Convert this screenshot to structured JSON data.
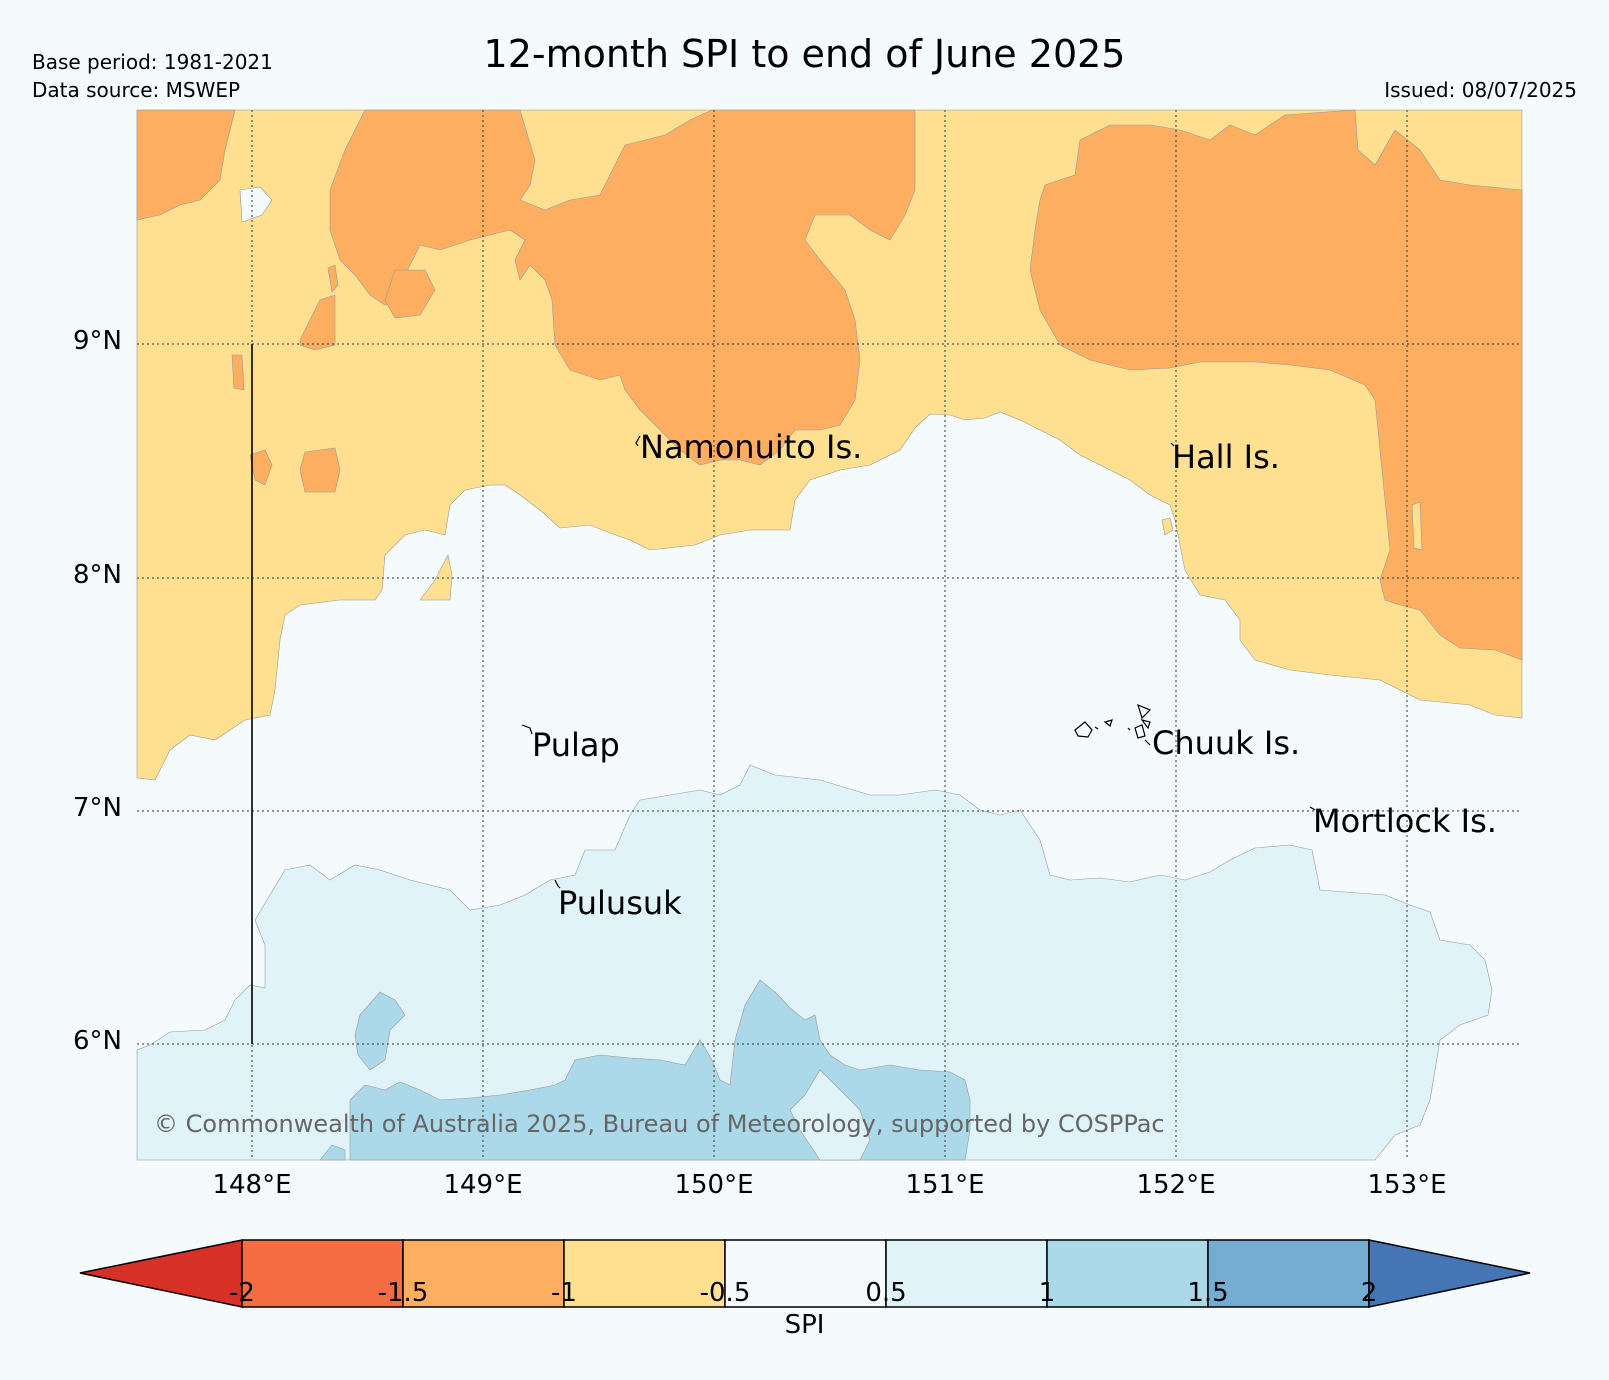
{
  "header": {
    "title": "12-month SPI to end of June 2025",
    "base_period": "Base period: 1981-2021",
    "data_source": "Data source: MSWEP",
    "issued": "Issued: 08/07/2025"
  },
  "map": {
    "lat_labels": [
      "9°N",
      "8°N",
      "7°N",
      "6°N"
    ],
    "lon_labels": [
      "148°E",
      "149°E",
      "150°E",
      "151°E",
      "152°E",
      "153°E"
    ],
    "place_labels": [
      "Namonuito Is.",
      "Hall Is.",
      "Pulap",
      "Chuuk Is.",
      "Mortlock Is.",
      "Pulusuk"
    ],
    "copyright": "© Commonwealth of Australia 2025, Bureau of Meteorology, supported by COSPPac",
    "colors": {
      "below_-2": "#d73027",
      "-2_to_-1.5": "#f46d43",
      "-1.5_to_-1": "#fdae61",
      "-1_to_-0.5": "#fee090",
      "-0.5_to_0.5": "#f5fbfc",
      "0.5_to_1": "#e0f3f8",
      "1_to_1.5": "#abd9e9",
      "1.5_to_2": "#74add1",
      "above_2": "#4575b4"
    }
  },
  "colorbar": {
    "ticks": [
      "-2",
      "-1.5",
      "-1",
      "-0.5",
      "0.5",
      "1",
      "1.5",
      "2"
    ],
    "title": "SPI"
  }
}
